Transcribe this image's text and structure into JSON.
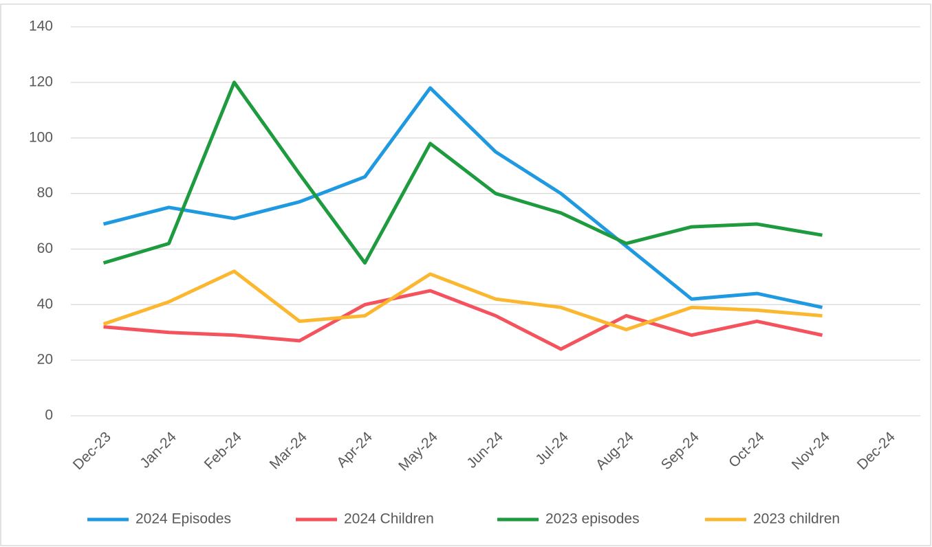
{
  "chart_data": {
    "type": "line",
    "categories": [
      "Dec-23",
      "Jan-24",
      "Feb-24",
      "Mar-24",
      "Apr-24",
      "May-24",
      "Jun-24",
      "Jul-24",
      "Aug-24",
      "Sep-24",
      "Oct-24",
      "Nov-24",
      "Dec-24"
    ],
    "series": [
      {
        "name": "2024 Episodes",
        "color": "#1f9ae0",
        "values": [
          69,
          75,
          71,
          77,
          86,
          118,
          95,
          80,
          61,
          42,
          44,
          39,
          null
        ]
      },
      {
        "name": "2024 Children",
        "color": "#f4535d",
        "values": [
          32,
          30,
          29,
          27,
          40,
          45,
          36,
          24,
          36,
          29,
          34,
          29,
          null
        ]
      },
      {
        "name": "2023 episodes",
        "color": "#1e9b3f",
        "values": [
          55,
          62,
          120,
          87,
          55,
          98,
          80,
          73,
          62,
          68,
          69,
          65,
          null
        ]
      },
      {
        "name": "2023 children",
        "color": "#fbb730",
        "values": [
          33,
          41,
          52,
          34,
          36,
          51,
          42,
          39,
          31,
          39,
          38,
          36,
          null
        ]
      }
    ],
    "ylim": [
      0,
      140
    ],
    "yticks": [
      0,
      20,
      40,
      60,
      80,
      100,
      120,
      140
    ],
    "grid": true,
    "legend": "bottom"
  }
}
